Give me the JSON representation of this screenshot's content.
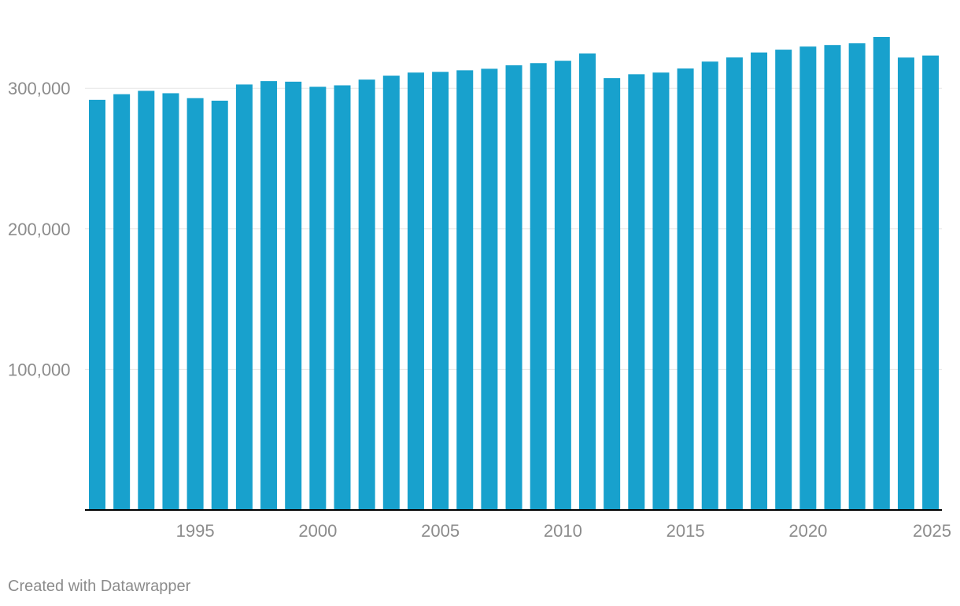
{
  "chart_data": {
    "type": "bar",
    "title": "",
    "xlabel": "",
    "ylabel": "",
    "categories": [
      1991,
      1992,
      1993,
      1994,
      1995,
      1996,
      1997,
      1998,
      1999,
      2000,
      2001,
      2002,
      2003,
      2004,
      2005,
      2006,
      2007,
      2008,
      2009,
      2010,
      2011,
      2012,
      2013,
      2014,
      2015,
      2016,
      2017,
      2018,
      2019,
      2020,
      2021,
      2022,
      2023,
      2024,
      2025
    ],
    "values": [
      291800,
      295800,
      298200,
      296500,
      293000,
      291200,
      302700,
      305100,
      304700,
      301100,
      302100,
      306200,
      309000,
      311200,
      311700,
      312800,
      313900,
      316400,
      317900,
      319600,
      324800,
      307300,
      310000,
      311200,
      314100,
      319000,
      322000,
      325500,
      327500,
      329700,
      330800,
      332000,
      336500,
      321900,
      323300
    ],
    "ylim": [
      0,
      340000
    ],
    "yticks": [
      100000,
      200000,
      300000
    ],
    "ytick_labels": [
      "100,000",
      "200,000",
      "300,000"
    ],
    "xticks": [
      1995,
      2000,
      2005,
      2010,
      2015,
      2020,
      2025
    ],
    "xtick_labels": [
      "1995",
      "2000",
      "2005",
      "2010",
      "2015",
      "2020",
      "2025"
    ],
    "grid": true,
    "colors": {
      "bar": "#18a1cd",
      "grid": "#e6e6e6",
      "baseline": "#000000",
      "label": "#8c8c8c"
    }
  },
  "footer": {
    "credit": "Created with Datawrapper"
  }
}
